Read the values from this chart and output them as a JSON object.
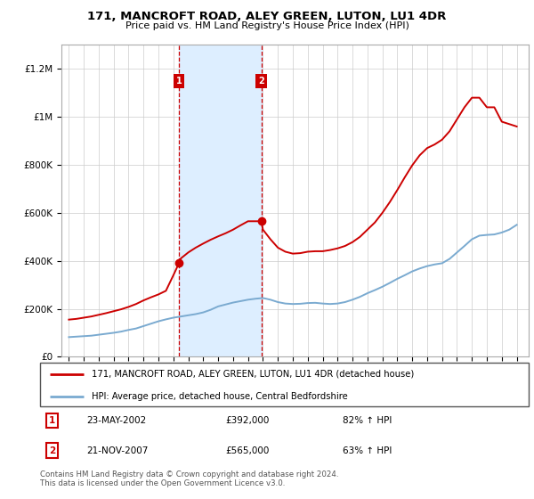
{
  "title": "171, MANCROFT ROAD, ALEY GREEN, LUTON, LU1 4DR",
  "subtitle": "Price paid vs. HM Land Registry's House Price Index (HPI)",
  "red_label": "171, MANCROFT ROAD, ALEY GREEN, LUTON, LU1 4DR (detached house)",
  "blue_label": "HPI: Average price, detached house, Central Bedfordshire",
  "sale1_date": "23-MAY-2002",
  "sale1_price": "£392,000",
  "sale1_hpi": "82% ↑ HPI",
  "sale2_date": "21-NOV-2007",
  "sale2_price": "£565,000",
  "sale2_hpi": "63% ↑ HPI",
  "footnote": "Contains HM Land Registry data © Crown copyright and database right 2024.\nThis data is licensed under the Open Government Licence v3.0.",
  "shaded_x_start": 2002.39,
  "shaded_x_end": 2007.89,
  "sale1_x": 2002.39,
  "sale2_x": 2007.89,
  "sale1_y": 392000,
  "sale2_y": 565000,
  "red_color": "#cc0000",
  "blue_color": "#7aaad0",
  "shade_color": "#ddeeff",
  "ylim_min": 0,
  "ylim_max": 1300000,
  "xlim_min": 1994.5,
  "xlim_max": 2025.8,
  "yticks": [
    0,
    200000,
    400000,
    600000,
    800000,
    1000000,
    1200000
  ],
  "ytick_labels": [
    "£0",
    "£200K",
    "£400K",
    "£600K",
    "£800K",
    "£1M",
    "£1.2M"
  ],
  "xticks": [
    1995,
    1996,
    1997,
    1998,
    1999,
    2000,
    2001,
    2002,
    2003,
    2004,
    2005,
    2006,
    2007,
    2008,
    2009,
    2010,
    2011,
    2012,
    2013,
    2014,
    2015,
    2016,
    2017,
    2018,
    2019,
    2020,
    2021,
    2022,
    2023,
    2024,
    2025
  ],
  "hpi_years": [
    1995,
    1995.5,
    1996,
    1996.5,
    1997,
    1997.5,
    1998,
    1998.5,
    1999,
    1999.5,
    2000,
    2000.5,
    2001,
    2001.5,
    2002,
    2002.5,
    2003,
    2003.5,
    2004,
    2004.5,
    2005,
    2005.5,
    2006,
    2006.5,
    2007,
    2007.5,
    2008,
    2008.5,
    2009,
    2009.5,
    2010,
    2010.5,
    2011,
    2011.5,
    2012,
    2012.5,
    2013,
    2013.5,
    2014,
    2014.5,
    2015,
    2015.5,
    2016,
    2016.5,
    2017,
    2017.5,
    2018,
    2018.5,
    2019,
    2019.5,
    2020,
    2020.5,
    2021,
    2021.5,
    2022,
    2022.5,
    2023,
    2023.5,
    2024,
    2024.5,
    2025
  ],
  "hpi_values": [
    82000,
    84000,
    86000,
    88000,
    92000,
    96000,
    100000,
    105000,
    112000,
    118000,
    128000,
    138000,
    148000,
    156000,
    163000,
    168000,
    173000,
    178000,
    185000,
    196000,
    210000,
    218000,
    226000,
    232000,
    238000,
    242000,
    245000,
    238000,
    228000,
    222000,
    220000,
    221000,
    224000,
    225000,
    222000,
    220000,
    222000,
    228000,
    238000,
    250000,
    265000,
    278000,
    292000,
    308000,
    325000,
    340000,
    356000,
    368000,
    378000,
    385000,
    390000,
    408000,
    435000,
    462000,
    490000,
    505000,
    508000,
    510000,
    518000,
    530000,
    550000
  ],
  "red_years": [
    1995,
    1995.5,
    1996,
    1996.5,
    1997,
    1997.5,
    1998,
    1998.5,
    1999,
    1999.5,
    2000,
    2000.5,
    2001,
    2001.5,
    2002,
    2002.39,
    2002.5,
    2003,
    2003.5,
    2004,
    2004.5,
    2005,
    2005.5,
    2006,
    2006.5,
    2007,
    2007.5,
    2007.89,
    2008,
    2008.5,
    2009,
    2009.5,
    2010,
    2010.5,
    2011,
    2011.5,
    2012,
    2012.5,
    2013,
    2013.5,
    2014,
    2014.5,
    2015,
    2015.5,
    2016,
    2016.5,
    2017,
    2017.5,
    2018,
    2018.5,
    2019,
    2019.5,
    2020,
    2020.5,
    2021,
    2021.5,
    2022,
    2022.5,
    2023,
    2023.5,
    2024,
    2024.5,
    2025
  ],
  "red_values": [
    155000,
    158000,
    163000,
    168000,
    175000,
    182000,
    190000,
    198000,
    208000,
    220000,
    235000,
    248000,
    260000,
    275000,
    340000,
    392000,
    410000,
    435000,
    455000,
    472000,
    488000,
    502000,
    515000,
    530000,
    548000,
    565000,
    565000,
    565000,
    530000,
    490000,
    455000,
    438000,
    430000,
    432000,
    438000,
    440000,
    440000,
    445000,
    452000,
    462000,
    478000,
    500000,
    530000,
    560000,
    600000,
    645000,
    695000,
    748000,
    798000,
    840000,
    870000,
    885000,
    905000,
    940000,
    990000,
    1040000,
    1080000,
    1080000,
    1040000,
    1040000,
    980000,
    970000,
    960000
  ]
}
